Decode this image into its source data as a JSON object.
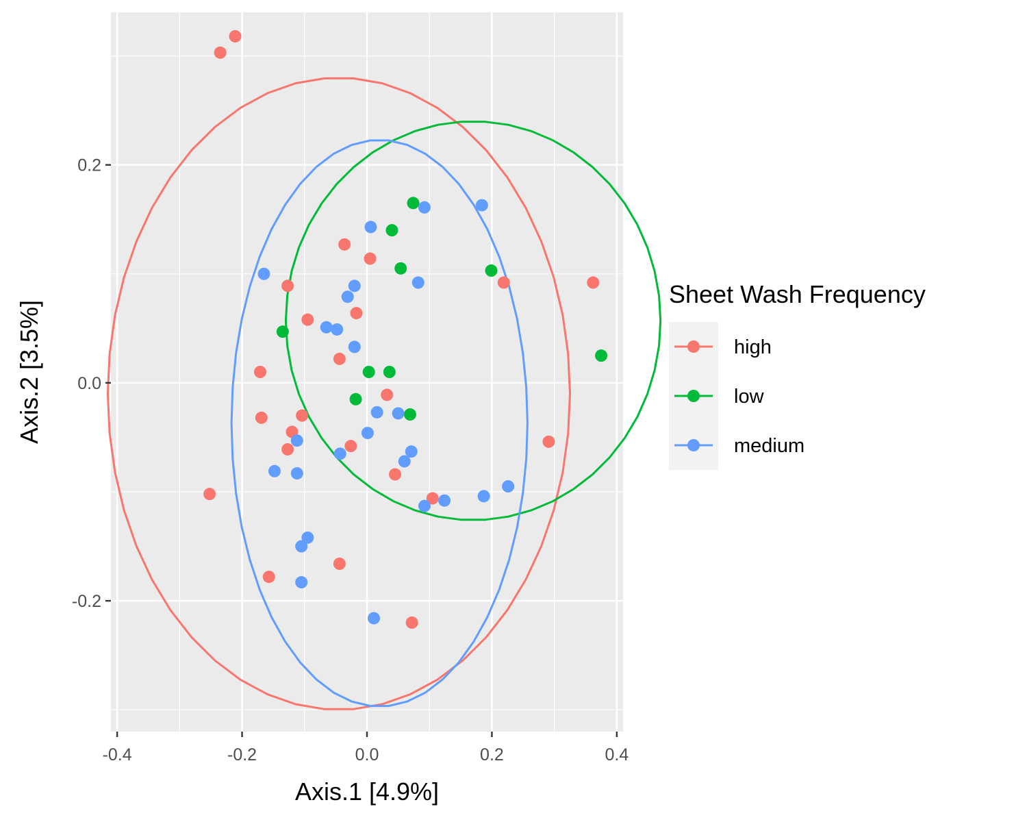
{
  "chart_data": {
    "type": "scatter",
    "xlabel": "Axis.1   [4.9%]",
    "ylabel": "Axis.2   [3.5%]",
    "xlim": [
      -0.41,
      0.41
    ],
    "ylim": [
      -0.32,
      0.34
    ],
    "x_ticks": [
      -0.4,
      -0.2,
      0.0,
      0.2,
      0.4
    ],
    "x_tick_labels": [
      "-0.4",
      "-0.2",
      "0.0",
      "0.2",
      "0.4"
    ],
    "y_ticks": [
      -0.2,
      0.0,
      0.2
    ],
    "y_tick_labels": [
      "-0.2",
      "0.0",
      "0.2"
    ],
    "grid": true,
    "legend": {
      "title": "Sheet Wash Frequency",
      "position": "right",
      "entries": [
        "high",
        "low",
        "medium"
      ]
    },
    "series": [
      {
        "name": "high",
        "color": "#F8766D",
        "ellipse": {
          "cx": -0.045,
          "cy": -0.01,
          "rx": 0.37,
          "ry": 0.29
        },
        "points": [
          [
            -0.211,
            0.318
          ],
          [
            -0.235,
            0.303
          ],
          [
            -0.036,
            0.127
          ],
          [
            0.005,
            0.114
          ],
          [
            -0.127,
            0.089
          ],
          [
            -0.095,
            0.058
          ],
          [
            -0.017,
            0.064
          ],
          [
            -0.044,
            0.022
          ],
          [
            -0.171,
            0.01
          ],
          [
            0.032,
            -0.011
          ],
          [
            -0.104,
            -0.03
          ],
          [
            -0.169,
            -0.032
          ],
          [
            -0.12,
            -0.045
          ],
          [
            -0.127,
            -0.061
          ],
          [
            -0.026,
            -0.058
          ],
          [
            0.045,
            -0.084
          ],
          [
            -0.252,
            -0.102
          ],
          [
            0.105,
            -0.106
          ],
          [
            0.219,
            0.092
          ],
          [
            0.362,
            0.092
          ],
          [
            0.291,
            -0.054
          ],
          [
            -0.044,
            -0.166
          ],
          [
            -0.157,
            -0.178
          ],
          [
            0.072,
            -0.22
          ]
        ]
      },
      {
        "name": "low",
        "color": "#00BA38",
        "ellipse": {
          "cx": 0.17,
          "cy": 0.057,
          "rx": 0.3,
          "ry": 0.183
        },
        "points": [
          [
            0.074,
            0.165
          ],
          [
            0.04,
            0.14
          ],
          [
            0.054,
            0.105
          ],
          [
            0.199,
            0.103
          ],
          [
            -0.135,
            0.047
          ],
          [
            0.003,
            0.01
          ],
          [
            0.036,
            0.01
          ],
          [
            -0.018,
            -0.015
          ],
          [
            0.069,
            -0.029
          ],
          [
            0.375,
            0.025
          ]
        ]
      },
      {
        "name": "medium",
        "color": "#619CFF",
        "ellipse": {
          "cx": 0.02,
          "cy": -0.037,
          "rx": 0.237,
          "ry": 0.26
        },
        "points": [
          [
            0.092,
            0.161
          ],
          [
            0.184,
            0.163
          ],
          [
            0.006,
            0.143
          ],
          [
            -0.165,
            0.1
          ],
          [
            0.082,
            0.092
          ],
          [
            -0.02,
            0.089
          ],
          [
            -0.031,
            0.079
          ],
          [
            -0.065,
            0.051
          ],
          [
            -0.048,
            0.049
          ],
          [
            -0.02,
            0.033
          ],
          [
            0.016,
            -0.027
          ],
          [
            0.05,
            -0.028
          ],
          [
            0.001,
            -0.046
          ],
          [
            -0.112,
            -0.053
          ],
          [
            0.071,
            -0.063
          ],
          [
            -0.043,
            -0.065
          ],
          [
            0.06,
            -0.072
          ],
          [
            -0.148,
            -0.081
          ],
          [
            -0.112,
            -0.083
          ],
          [
            0.226,
            -0.095
          ],
          [
            0.187,
            -0.104
          ],
          [
            0.124,
            -0.108
          ],
          [
            0.092,
            -0.113
          ],
          [
            -0.095,
            -0.142
          ],
          [
            -0.105,
            -0.15
          ],
          [
            -0.105,
            -0.183
          ],
          [
            0.011,
            -0.216
          ]
        ]
      }
    ]
  }
}
